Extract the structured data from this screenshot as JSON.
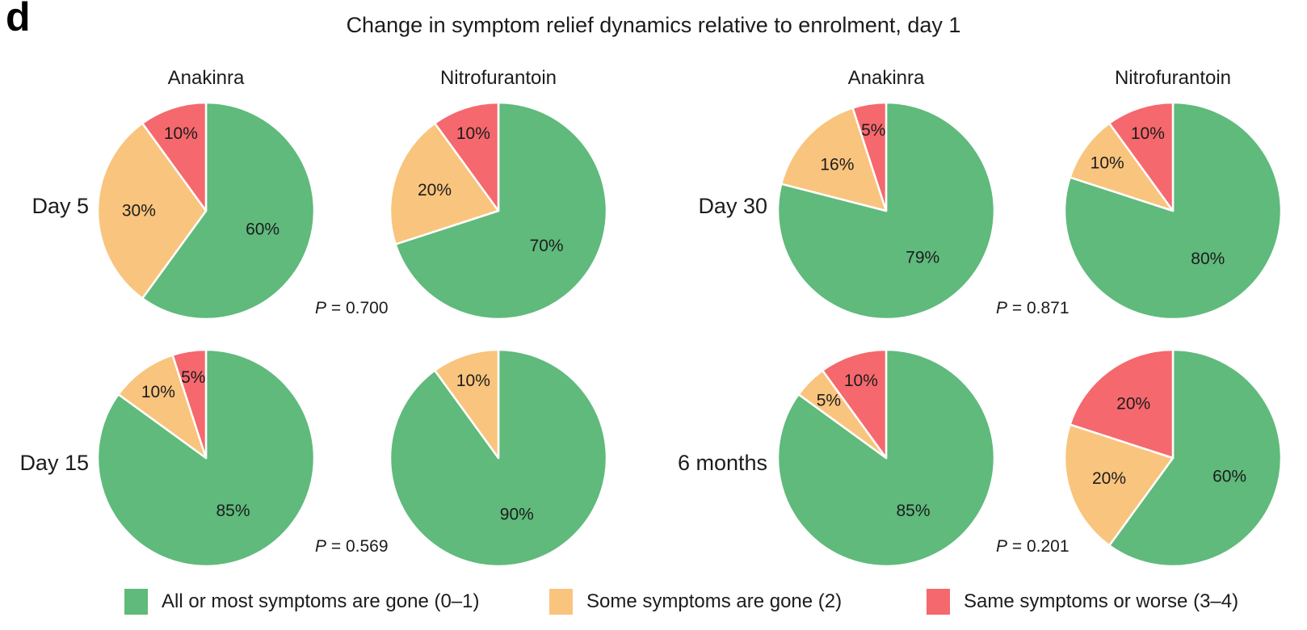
{
  "panel_label": "d",
  "title": "Change in symptom relief dynamics relative to enrolment, day 1",
  "colors": {
    "green": "#5fba7c",
    "orange": "#f9c47d",
    "red": "#f5686d",
    "text": "#1c1c1c",
    "background": "#ffffff"
  },
  "legend": {
    "items": [
      {
        "swatch": "green",
        "label": "All or most symptoms are gone (0–1)"
      },
      {
        "swatch": "orange",
        "label": "Some symptoms are gone (2)"
      },
      {
        "swatch": "red",
        "label": "Same symptoms or worse (3–4)"
      }
    ]
  },
  "chart_data": {
    "type": "pie",
    "unit": "%",
    "slice_order": [
      "green",
      "orange",
      "red"
    ],
    "slice_meanings": {
      "green": "All or most symptoms are gone (0–1)",
      "orange": "Some symptoms are gone (2)",
      "red": "Same symptoms or worse (3–4)"
    },
    "column_headers": [
      "Anakinra",
      "Nitrofurantoin",
      "Anakinra",
      "Nitrofurantoin"
    ],
    "start_angle_deg": 0,
    "direction": "clockwise",
    "groups": [
      {
        "row_label": "Day 5",
        "p_value": "0.700",
        "pies": [
          {
            "treatment": "Anakinra",
            "values": {
              "green": 60,
              "orange": 30,
              "red": 10
            }
          },
          {
            "treatment": "Nitrofurantoin",
            "values": {
              "green": 70,
              "orange": 20,
              "red": 10
            }
          }
        ]
      },
      {
        "row_label": "Day 15",
        "p_value": "0.569",
        "pies": [
          {
            "treatment": "Anakinra",
            "values": {
              "green": 85,
              "orange": 10,
              "red": 5
            }
          },
          {
            "treatment": "Nitrofurantoin",
            "values": {
              "green": 90,
              "orange": 10,
              "red": 0
            }
          }
        ]
      },
      {
        "row_label": "Day 30",
        "p_value": "0.871",
        "pies": [
          {
            "treatment": "Anakinra",
            "values": {
              "green": 79,
              "orange": 16,
              "red": 5
            }
          },
          {
            "treatment": "Nitrofurantoin",
            "values": {
              "green": 80,
              "orange": 10,
              "red": 10
            }
          }
        ]
      },
      {
        "row_label": "6 months",
        "p_value": "0.201",
        "pies": [
          {
            "treatment": "Anakinra",
            "values": {
              "green": 85,
              "orange": 5,
              "red": 10
            }
          },
          {
            "treatment": "Nitrofurantoin",
            "values": {
              "green": 60,
              "orange": 20,
              "red": 20
            }
          }
        ]
      }
    ],
    "p_label_prefix": "P"
  }
}
